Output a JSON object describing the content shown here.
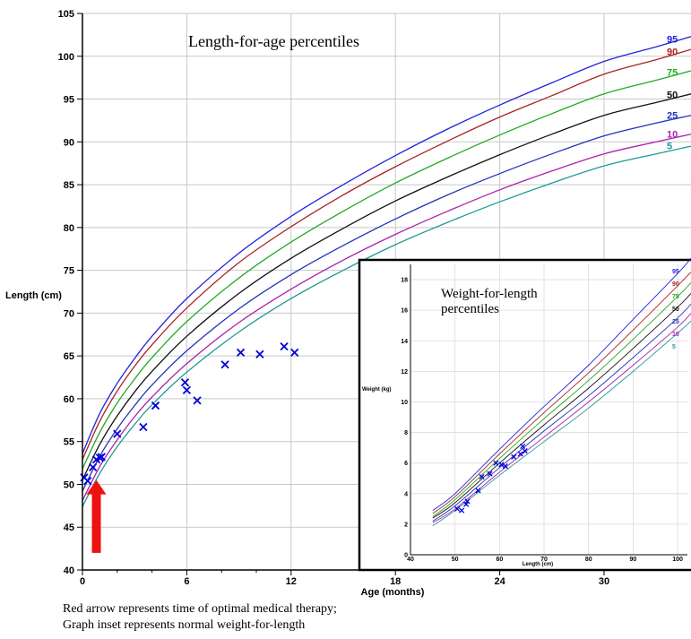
{
  "chart_data": [
    {
      "type": "line",
      "title": "Length-for-age percentiles",
      "xlabel": "Age (months)",
      "ylabel": "Length (cm)",
      "xlim": [
        0,
        35
      ],
      "ylim": [
        40,
        105
      ],
      "x_ticks": [
        0,
        6,
        12,
        18,
        24,
        30
      ],
      "x_tick_labels": [
        "0",
        "6",
        "12",
        "18",
        "24",
        "30"
      ],
      "x_minor_ticks": [
        2,
        4,
        8,
        10
      ],
      "y_ticks": [
        40,
        45,
        50,
        55,
        60,
        65,
        70,
        75,
        80,
        85,
        90,
        95,
        100,
        105
      ],
      "y_tick_labels": [
        "40",
        "45",
        "50",
        "55",
        "60",
        "65",
        "70",
        "75",
        "80",
        "85",
        "90",
        "95",
        "100",
        "105"
      ],
      "grid": true,
      "series": [
        {
          "name": "95",
          "color": "#2222dd",
          "x": [
            0,
            1,
            2,
            3,
            4,
            6,
            9,
            12,
            15,
            18,
            21,
            24,
            27,
            30,
            33,
            35
          ],
          "values": [
            53.6,
            58.3,
            61.8,
            64.7,
            67.3,
            71.7,
            77.0,
            81.3,
            85.0,
            88.4,
            91.5,
            94.3,
            96.9,
            99.4,
            101.1,
            102.3
          ]
        },
        {
          "name": "90",
          "color": "#aa2222",
          "x": [
            0,
            1,
            2,
            3,
            4,
            6,
            9,
            12,
            15,
            18,
            21,
            24,
            27,
            30,
            33,
            35
          ],
          "values": [
            52.9,
            57.4,
            60.9,
            63.8,
            66.3,
            70.6,
            75.9,
            80.1,
            83.8,
            87.1,
            90.1,
            92.9,
            95.4,
            97.9,
            99.6,
            100.8
          ]
        },
        {
          "name": "75",
          "color": "#22aa22",
          "x": [
            0,
            1,
            2,
            3,
            4,
            6,
            9,
            12,
            15,
            18,
            21,
            24,
            27,
            30,
            33,
            35
          ],
          "values": [
            51.8,
            56.1,
            59.5,
            62.3,
            64.8,
            69.0,
            74.1,
            78.3,
            81.9,
            85.2,
            88.1,
            90.8,
            93.3,
            95.6,
            97.2,
            98.3
          ]
        },
        {
          "name": "50",
          "color": "#111111",
          "x": [
            0,
            1,
            2,
            3,
            4,
            6,
            9,
            12,
            15,
            18,
            21,
            24,
            27,
            30,
            33,
            35
          ],
          "values": [
            50.5,
            54.7,
            58.0,
            60.8,
            63.2,
            67.3,
            72.3,
            76.4,
            79.9,
            83.1,
            85.9,
            88.5,
            90.9,
            93.1,
            94.6,
            95.6
          ]
        },
        {
          "name": "25",
          "color": "#2233bb",
          "x": [
            0,
            1,
            2,
            3,
            4,
            6,
            9,
            12,
            15,
            18,
            21,
            24,
            27,
            30,
            33,
            35
          ],
          "values": [
            49.2,
            53.3,
            56.5,
            59.2,
            61.6,
            65.6,
            70.5,
            74.5,
            77.9,
            81.0,
            83.8,
            86.3,
            88.6,
            90.7,
            92.2,
            93.1
          ]
        },
        {
          "name": "10",
          "color": "#aa22aa",
          "x": [
            0,
            1,
            2,
            3,
            4,
            6,
            9,
            12,
            15,
            18,
            21,
            24,
            27,
            30,
            33,
            35
          ],
          "values": [
            48.1,
            52.1,
            55.2,
            57.9,
            60.2,
            64.1,
            68.9,
            72.8,
            76.2,
            79.2,
            81.9,
            84.4,
            86.6,
            88.6,
            90.0,
            90.9
          ]
        },
        {
          "name": "5",
          "color": "#229999",
          "x": [
            0,
            1,
            2,
            3,
            4,
            6,
            9,
            12,
            15,
            18,
            21,
            24,
            27,
            30,
            33,
            35
          ],
          "values": [
            47.4,
            51.3,
            54.4,
            57.0,
            59.3,
            63.1,
            67.8,
            71.7,
            75.0,
            78.0,
            80.6,
            83.0,
            85.2,
            87.2,
            88.6,
            89.5
          ]
        }
      ],
      "points": {
        "marker": "x",
        "color": "#0000dd",
        "x": [
          0.1,
          0.3,
          0.6,
          0.8,
          1.0,
          1.1,
          2.0,
          3.5,
          4.2,
          5.9,
          6.0,
          6.6,
          8.2,
          9.1,
          10.2,
          11.6,
          12.2
        ],
        "y": [
          50.8,
          50.4,
          52.0,
          52.9,
          53.1,
          53.2,
          55.9,
          56.7,
          59.2,
          61.9,
          61.0,
          59.8,
          64.0,
          65.4,
          65.2,
          66.1,
          65.4
        ]
      },
      "arrow": {
        "x": 0.8,
        "y_from": 42,
        "y_to": 50.5,
        "color": "#ee1111"
      }
    },
    {
      "type": "line",
      "title": "Weight-for-length percentiles",
      "xlabel": "Length (cm)",
      "ylabel": "Weight (kg)",
      "xlim": [
        40,
        103
      ],
      "ylim": [
        0,
        19
      ],
      "x_ticks": [
        40,
        50,
        60,
        70,
        80,
        90,
        100
      ],
      "x_tick_labels": [
        "40",
        "50",
        "60",
        "70",
        "80",
        "90",
        "100"
      ],
      "y_ticks": [
        0,
        2,
        4,
        6,
        8,
        10,
        12,
        14,
        16,
        18
      ],
      "y_tick_labels": [
        "0",
        "2",
        "4",
        "6",
        "8",
        "10",
        "12",
        "14",
        "16",
        "18"
      ],
      "grid": true,
      "series": [
        {
          "name": "95",
          "color": "#2222dd",
          "x": [
            45,
            50,
            60,
            70,
            80,
            90,
            100,
            103
          ],
          "values": [
            2.9,
            4.0,
            6.9,
            9.7,
            12.4,
            15.4,
            18.4,
            19.4
          ]
        },
        {
          "name": "90",
          "color": "#aa2222",
          "x": [
            45,
            50,
            60,
            70,
            80,
            90,
            100,
            103
          ],
          "values": [
            2.7,
            3.8,
            6.6,
            9.3,
            11.9,
            14.7,
            17.6,
            18.5
          ]
        },
        {
          "name": "75",
          "color": "#22aa22",
          "x": [
            45,
            50,
            60,
            70,
            80,
            90,
            100,
            103
          ],
          "values": [
            2.5,
            3.6,
            6.3,
            8.9,
            11.4,
            14.1,
            16.9,
            17.8
          ]
        },
        {
          "name": "50",
          "color": "#111111",
          "x": [
            45,
            50,
            60,
            70,
            80,
            90,
            100,
            103
          ],
          "values": [
            2.4,
            3.4,
            6.0,
            8.5,
            10.9,
            13.5,
            16.2,
            17.1
          ]
        },
        {
          "name": "25",
          "color": "#2233bb",
          "x": [
            45,
            50,
            60,
            70,
            80,
            90,
            100,
            103
          ],
          "values": [
            2.2,
            3.2,
            5.7,
            8.1,
            10.4,
            12.9,
            15.5,
            16.4
          ]
        },
        {
          "name": "10",
          "color": "#aa22aa",
          "x": [
            45,
            50,
            60,
            70,
            80,
            90,
            100,
            103
          ],
          "values": [
            2.1,
            3.0,
            5.4,
            7.7,
            10.0,
            12.4,
            14.9,
            15.8
          ]
        },
        {
          "name": "5",
          "color": "#229999",
          "x": [
            45,
            50,
            60,
            70,
            80,
            90,
            100,
            103
          ],
          "values": [
            1.9,
            2.9,
            5.2,
            7.4,
            9.6,
            12.0,
            14.5,
            15.3
          ]
        }
      ],
      "points": {
        "marker": "x",
        "color": "#0000dd",
        "x": [
          50.5,
          51.5,
          52.5,
          52.8,
          55.2,
          56.0,
          57.8,
          59.2,
          60.4,
          61.3,
          63.2,
          64.7,
          65.2,
          65.7
        ],
        "y": [
          3.0,
          2.9,
          3.3,
          3.5,
          4.2,
          5.1,
          5.3,
          6.0,
          5.9,
          5.8,
          6.4,
          6.6,
          7.1,
          6.8
        ]
      }
    }
  ],
  "captions": {
    "line1": "Red arrow represents time of optimal medical therapy;",
    "line2": "Graph inset represents normal weight-for-length"
  }
}
